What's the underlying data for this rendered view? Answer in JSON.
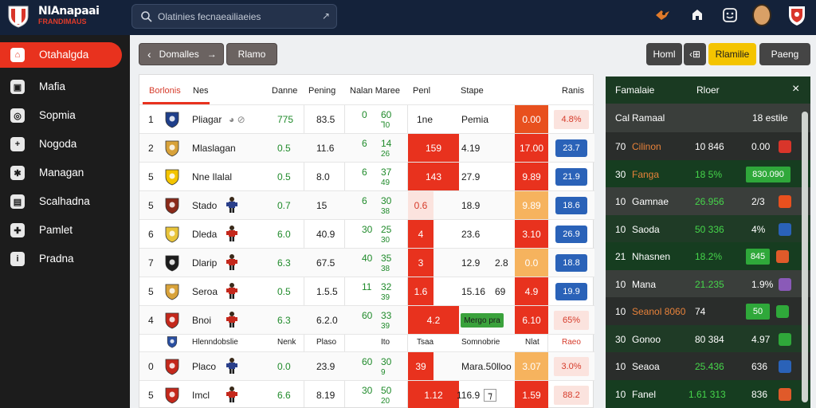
{
  "header": {
    "brand": "NIAnapaai",
    "brand_sub": "FRANDIMAUS",
    "search_placeholder": "Olatinies fecnaeailiaeies",
    "search_clear": "↗"
  },
  "sidebar": {
    "items": [
      {
        "label": "Otahalgda",
        "icon": "home-icon",
        "glyph": "⌂"
      },
      {
        "label": "Mafia",
        "icon": "box-icon",
        "glyph": "▣"
      },
      {
        "label": "Sopmia",
        "icon": "ball-icon",
        "glyph": "◎"
      },
      {
        "label": "Nogoda",
        "icon": "plus-icon",
        "glyph": "+"
      },
      {
        "label": "Managan",
        "icon": "gear-icon",
        "glyph": "✱"
      },
      {
        "label": "Scalhadna",
        "icon": "ticket-icon",
        "glyph": "▤"
      },
      {
        "label": "Pamlet",
        "icon": "puzzle-icon",
        "glyph": "✚"
      },
      {
        "label": "Pradna",
        "icon": "info-icon",
        "glyph": "i"
      }
    ]
  },
  "toolbar": {
    "back_label": "Domalles",
    "forward_label": "Rlamo",
    "btn_home": "Homl",
    "btn_back": "‹⊞",
    "btn_yellow": "Rlamilie",
    "btn_dark": "Paeng"
  },
  "table": {
    "headers": [
      "Borlonis",
      "Nes",
      "Danne",
      "Pening",
      "Nalan Maree",
      "Penl",
      "Stape",
      "Ranis"
    ],
    "rows": [
      {
        "rank": "1",
        "team": "Pliagar",
        "extra": "◕ ⊘",
        "c1": "775",
        "c2": "83.5",
        "c3a": "0",
        "c3b": "60",
        "c3c": "⅂0",
        "c4": "1ne",
        "c5": "Pemia",
        "c6": "0.00",
        "c7": "4.8%",
        "style": "pink"
      },
      {
        "rank": "2",
        "team": "Mlaslagan",
        "c1": "0.5",
        "c2": "11.6",
        "c3a": "6",
        "c3b": "14",
        "c3c": "26",
        "c4": "159",
        "c5": "4.19",
        "c6": "17.00",
        "c7": "23.7",
        "style": "blue"
      },
      {
        "rank": "5",
        "team": "Nne Ilalal",
        "c1": "0.5",
        "c2": "8.0",
        "c3a": "6",
        "c3b": "37",
        "c3c": "49",
        "c4": "143",
        "c5": "27.9",
        "c6": "9.89",
        "c7": "21.9",
        "style": "blue"
      },
      {
        "rank": "5",
        "team": "Stado",
        "c1": "0.7",
        "c2": "15",
        "c3a": "6",
        "c3b": "30",
        "c3c": "38",
        "c4": "0.6",
        "c5": "18.9",
        "c6": "9.89",
        "c7": "18.6",
        "style": "blue"
      },
      {
        "rank": "6",
        "team": "Dleda",
        "c1": "6.0",
        "c2": "40.9",
        "c3a": "30",
        "c3b": "25",
        "c3c": "30",
        "c4": "4",
        "c5": "23.6",
        "c6": "3.10",
        "c7": "26.9",
        "style": "blue"
      },
      {
        "rank": "7",
        "team": "Dlarip",
        "c1": "6.3",
        "c2": "67.5",
        "c3a": "40",
        "c3b": "35",
        "c3c": "38",
        "c4": "3",
        "c5": "12.9",
        "c5b": "2.8",
        "c6": "0.0",
        "c7": "18.8",
        "style": "blue"
      },
      {
        "rank": "5",
        "team": "Seroa",
        "c1": "0.5",
        "c2": "1.5.5",
        "c3a": "11",
        "c3b": "32",
        "c3c": "39",
        "c4": "1.6",
        "c5": "15.16",
        "c5b": "69",
        "c6": "4.9",
        "c7": "19.9",
        "style": "blue"
      },
      {
        "rank": "4",
        "team": "Bnoi",
        "c1": "6.3",
        "c2": "6.2.0",
        "c3a": "60",
        "c3b": "33",
        "c3c": "39",
        "c4": "4.2",
        "c5": "Mergo pra",
        "c6": "6.10",
        "c7": "65%",
        "style": "pink"
      },
      {
        "rank": "",
        "team": "Hlenndobslie",
        "c1": "Nenk",
        "c2": "Plaso",
        "c3a": "",
        "c3b": "Ito",
        "c3c": "",
        "c4": "Tsaa",
        "c5": "Somnobrie",
        "c6": "Nlat",
        "c7": "Raeo",
        "style": "subhead"
      },
      {
        "rank": "0",
        "team": "Placo",
        "c1": "0.0",
        "c2": "23.9",
        "c3a": "60",
        "c3b": "30",
        "c3c": "9",
        "c4": "39",
        "c5": "Mara.50",
        "c5b": "lloo",
        "c6": "3.07",
        "c7": "3.0%",
        "style": "pink"
      },
      {
        "rank": "5",
        "team": "Imcl",
        "c1": "6.6",
        "c2": "8.19",
        "c3a": "30",
        "c3b": "50",
        "c3c": "20",
        "c4": "1.12",
        "c5": "116.9",
        "c5b": "⁊",
        "c6": "1.59",
        "c7": "88.2",
        "style": "pink"
      }
    ]
  },
  "rpanel": {
    "title": "Famalaie",
    "subtitle": "Rloer",
    "close": "×",
    "head_row": {
      "a": "Cal",
      "b": "Ramaal",
      "c": "18 estile"
    },
    "rows": [
      {
        "a": "70",
        "b": "Cilinon",
        "b_color": "orange",
        "c": "10 846",
        "d": "0.00",
        "icon": "crest-red"
      },
      {
        "a": "30",
        "b": "Fanga",
        "b_color": "orange",
        "c": "18 5%",
        "c_color": "green",
        "d": "830.090",
        "d_style": "greenbtn"
      },
      {
        "a": "10",
        "b": "Gamnae",
        "c": "26.956",
        "c_color": "green",
        "d": "2/3",
        "icon": "kit-red"
      },
      {
        "a": "10",
        "b": "Saoda",
        "c": "50 336",
        "c_color": "green",
        "d": "4%",
        "icon": "kit-blue"
      },
      {
        "a": "21",
        "b": "Nhasnen",
        "c": "18.2%",
        "c_color": "green",
        "d": "845",
        "d_style": "greenbtn",
        "icon": "ball-red"
      },
      {
        "a": "10",
        "b": "Mana",
        "c": "21.235",
        "c_color": "green",
        "d": "1.9%",
        "icon": "kit-purple"
      },
      {
        "a": "10",
        "b": "Seanol 8060",
        "b_color": "orange",
        "c": "74",
        "d": "50",
        "d_style": "greenbtn",
        "icon": "mini-green"
      },
      {
        "a": "30",
        "b": "Gonoo",
        "c": "80 384",
        "d": "4.97",
        "icon": "kit-green"
      },
      {
        "a": "10",
        "b": "Seaoa",
        "c": "25.436",
        "c_color": "green",
        "d": "636",
        "icon": "kit-blue"
      },
      {
        "a": "10",
        "b": "Fanel",
        "c": "1.61 313",
        "c_color": "green",
        "d": "836",
        "icon": "ball-red"
      }
    ]
  },
  "colors": {
    "accent": "#e8321e",
    "navy": "#14223a",
    "green": "#46d64b",
    "blue": "#2a62b8"
  }
}
